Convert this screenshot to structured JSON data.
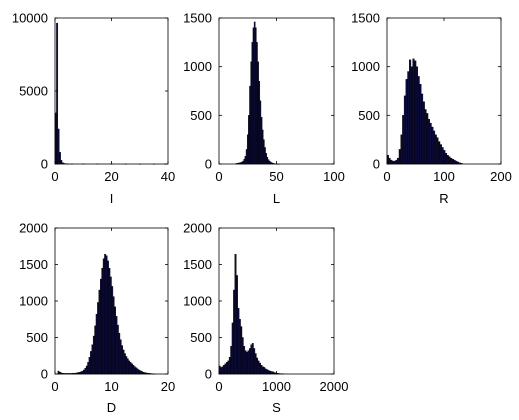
{
  "chart_data": [
    {
      "type": "bar",
      "xlabel": "I",
      "xlim": [
        0,
        40
      ],
      "ylim": [
        0,
        10000
      ],
      "xticks": [
        "0",
        "20",
        "40"
      ],
      "yticks": [
        "0",
        "5000",
        "10000"
      ],
      "bin_width": 0.5,
      "x": [
        0.25,
        0.75,
        1.25,
        1.75,
        2.25,
        2.75,
        3.25,
        3.75,
        4.25,
        4.75,
        6,
        10,
        15,
        20,
        25,
        30,
        35,
        39
      ],
      "values": [
        3500,
        9650,
        2400,
        800,
        250,
        90,
        40,
        25,
        15,
        10,
        8,
        6,
        5,
        4,
        3,
        3,
        2,
        2
      ]
    },
    {
      "type": "bar",
      "xlabel": "L",
      "xlim": [
        0,
        100
      ],
      "ylim": [
        0,
        1500
      ],
      "xticks": [
        "0",
        "50",
        "100"
      ],
      "yticks": [
        "0",
        "500",
        "1000",
        "1500"
      ],
      "bin_width": 1,
      "x": [
        15,
        16,
        17,
        18,
        19,
        20,
        21,
        22,
        23,
        24,
        25,
        26,
        27,
        28,
        29,
        30,
        31,
        32,
        33,
        34,
        35,
        36,
        37,
        38,
        39,
        40,
        41,
        42,
        43,
        44,
        45,
        46,
        47,
        48,
        49,
        50,
        51,
        52
      ],
      "values": [
        5,
        8,
        10,
        12,
        15,
        20,
        30,
        50,
        80,
        150,
        300,
        500,
        800,
        1050,
        1250,
        1400,
        1460,
        1400,
        1250,
        1050,
        850,
        650,
        480,
        350,
        250,
        170,
        110,
        70,
        45,
        30,
        20,
        12,
        8,
        5,
        3,
        2,
        1,
        1
      ]
    },
    {
      "type": "bar",
      "xlabel": "R",
      "xlim": [
        0,
        200
      ],
      "ylim": [
        0,
        1500
      ],
      "xticks": [
        "0",
        "100",
        "200"
      ],
      "yticks": [
        "0",
        "500",
        "1000",
        "1500"
      ],
      "bin_width": 3,
      "x": [
        1.5,
        4.5,
        7.5,
        10.5,
        13.5,
        16.5,
        19.5,
        22.5,
        25.5,
        28.5,
        31.5,
        34.5,
        37.5,
        40.5,
        43.5,
        46.5,
        49.5,
        52.5,
        55.5,
        58.5,
        61.5,
        64.5,
        67.5,
        70.5,
        73.5,
        76.5,
        79.5,
        82.5,
        85.5,
        88.5,
        91.5,
        94.5,
        97.5,
        100.5,
        103.5,
        106.5,
        109.5,
        112.5,
        115.5,
        118.5,
        121.5,
        124.5,
        127.5,
        130.5
      ],
      "values": [
        90,
        60,
        40,
        30,
        30,
        40,
        60,
        150,
        300,
        500,
        700,
        870,
        950,
        1070,
        1000,
        1080,
        1060,
        1000,
        900,
        820,
        720,
        640,
        560,
        520,
        460,
        420,
        380,
        340,
        300,
        270,
        230,
        200,
        170,
        140,
        110,
        90,
        75,
        60,
        50,
        40,
        30,
        20,
        12,
        8
      ]
    },
    {
      "type": "bar",
      "xlabel": "D",
      "xlim": [
        0,
        20
      ],
      "ylim": [
        0,
        2000
      ],
      "xticks": [
        "0",
        "10",
        "20"
      ],
      "yticks": [
        "0",
        "500",
        "1000",
        "1500",
        "2000"
      ],
      "bin_width": 0.25,
      "x": [
        0.625,
        0.875,
        1.125,
        1.375,
        1.625,
        1.875,
        2.125,
        2.375,
        2.625,
        2.875,
        3.125,
        3.375,
        3.625,
        3.875,
        4.125,
        4.375,
        4.625,
        4.875,
        5.125,
        5.375,
        5.625,
        5.875,
        6.125,
        6.375,
        6.625,
        6.875,
        7.125,
        7.375,
        7.625,
        7.875,
        8.125,
        8.375,
        8.625,
        8.875,
        9.125,
        9.375,
        9.625,
        9.875,
        10.125,
        10.375,
        10.625,
        10.875,
        11.125,
        11.375,
        11.625,
        11.875,
        12.125,
        12.375,
        12.625,
        12.875,
        13.125,
        13.375,
        13.625,
        13.875,
        14.125,
        14.375,
        14.625,
        14.875,
        15.125,
        15.375,
        15.625,
        15.875,
        16.125,
        16.375,
        16.625,
        16.875,
        17.125,
        17.375,
        17.625
      ],
      "values": [
        40,
        25,
        15,
        10,
        8,
        8,
        8,
        8,
        8,
        8,
        10,
        10,
        12,
        15,
        20,
        25,
        30,
        40,
        55,
        80,
        110,
        160,
        230,
        310,
        400,
        520,
        660,
        820,
        980,
        1150,
        1300,
        1450,
        1580,
        1640,
        1620,
        1550,
        1450,
        1330,
        1200,
        1060,
        920,
        790,
        670,
        560,
        470,
        390,
        330,
        280,
        240,
        210,
        180,
        160,
        140,
        120,
        100,
        85,
        70,
        55,
        45,
        35,
        25,
        20,
        15,
        12,
        10,
        8,
        5,
        3,
        2
      ]
    },
    {
      "type": "bar",
      "xlabel": "S",
      "xlim": [
        0,
        2000
      ],
      "ylim": [
        0,
        2000
      ],
      "xticks": [
        "0",
        "1000",
        "2000"
      ],
      "yticks": [
        "0",
        "500",
        "1000",
        "1500",
        "2000"
      ],
      "bin_width": 25,
      "x": [
        12.5,
        37.5,
        62.5,
        87.5,
        112.5,
        137.5,
        162.5,
        187.5,
        212.5,
        237.5,
        262.5,
        287.5,
        312.5,
        337.5,
        362.5,
        387.5,
        412.5,
        437.5,
        462.5,
        487.5,
        512.5,
        537.5,
        562.5,
        587.5,
        612.5,
        637.5,
        662.5,
        687.5,
        712.5,
        737.5,
        762.5,
        787.5,
        812.5,
        837.5,
        862.5,
        887.5,
        912.5,
        937.5,
        962.5,
        987.5,
        1012.5,
        1037.5,
        1062.5,
        1087.5,
        1112.5
      ],
      "values": [
        110,
        90,
        100,
        120,
        140,
        160,
        180,
        230,
        380,
        700,
        1150,
        1640,
        1350,
        900,
        750,
        650,
        500,
        380,
        320,
        300,
        320,
        350,
        400,
        420,
        350,
        280,
        220,
        180,
        150,
        120,
        100,
        90,
        70,
        60,
        50,
        40,
        35,
        30,
        20,
        15,
        10,
        8,
        5,
        5,
        3
      ]
    }
  ]
}
